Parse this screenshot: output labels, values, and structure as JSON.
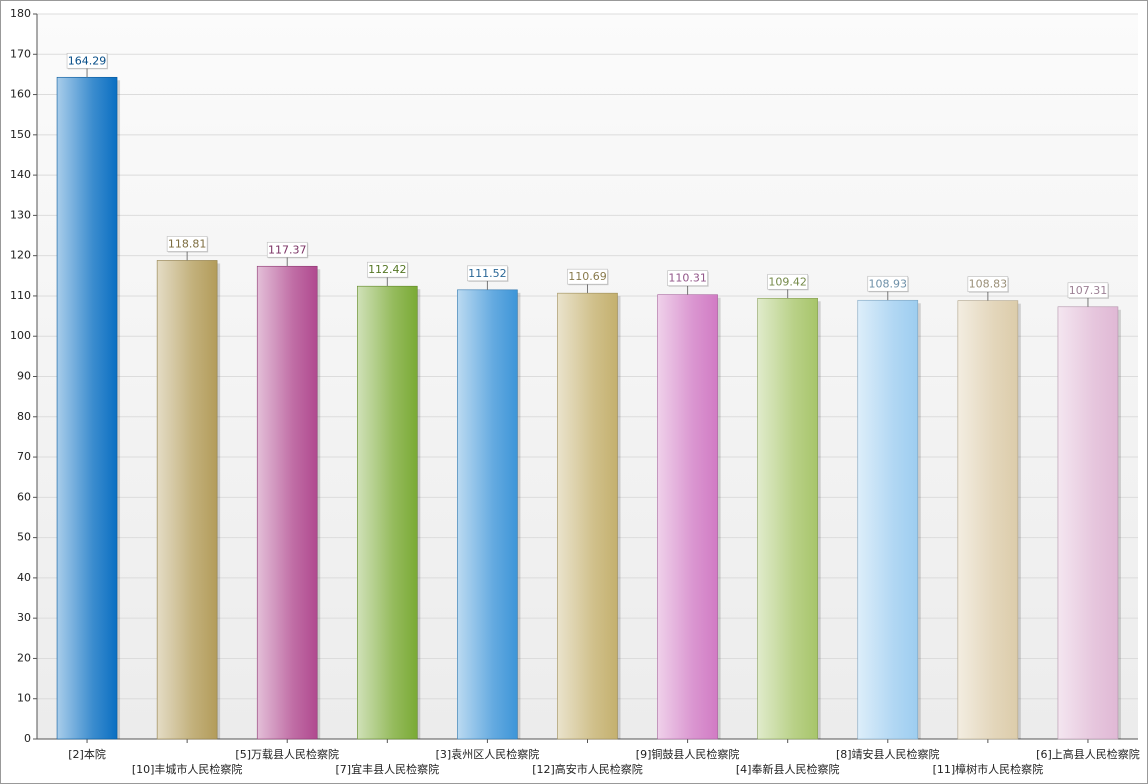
{
  "chart_data": {
    "type": "bar",
    "categories": [
      "[2]本院",
      "[10]丰城市人民检察院",
      "[5]万载县人民检察院",
      "[7]宜丰县人民检察院",
      "[3]袁州区人民检察院",
      "[12]高安市人民检察院",
      "[9]铜鼓县人民检察院",
      "[4]奉新县人民检察院",
      "[8]靖安县人民检察院",
      "[11]樟树市人民检察院",
      "[6]上高县人民检察院"
    ],
    "values": [
      164.29,
      118.81,
      117.37,
      112.42,
      111.52,
      110.69,
      110.31,
      109.42,
      108.93,
      108.83,
      107.31
    ],
    "colors": [
      "#0a6fc2",
      "#b39c5a",
      "#b0498f",
      "#7aaa35",
      "#3d95d8",
      "#c4b06e",
      "#d17bc4",
      "#a7c56a",
      "#9dcdf0",
      "#dcccaa",
      "#e0b8d5"
    ],
    "ylim": [
      0,
      180
    ],
    "yticks": [
      0,
      10,
      20,
      30,
      40,
      50,
      60,
      70,
      80,
      90,
      100,
      110,
      120,
      130,
      140,
      150,
      160,
      170,
      180
    ],
    "grid": true
  }
}
